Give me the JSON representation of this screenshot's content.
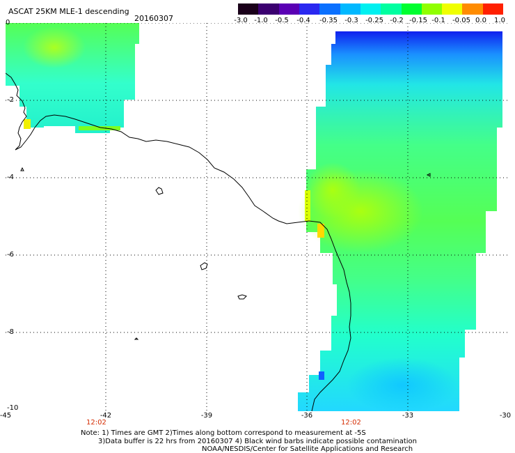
{
  "header": {
    "title": "ASCAT 25KM MLE-1 descending",
    "date": "20160307"
  },
  "colorbar": {
    "tick_labels": [
      "-3.0",
      "-1.0",
      "-0.5",
      "-0.4",
      "-0.35",
      "-0.3",
      "-0.25",
      "-0.2",
      "-0.15",
      "-0.1",
      "-0.05",
      "0.0",
      "1.0"
    ],
    "colors": [
      "#1a001a",
      "#3b0070",
      "#5a00b4",
      "#2a28f0",
      "#0a70ff",
      "#00b8ff",
      "#00f0f0",
      "#00ffa0",
      "#00ff30",
      "#90ff00",
      "#f0ff00",
      "#ff8c00",
      "#ff2000"
    ]
  },
  "axes": {
    "y_tick_labels": [
      "0",
      "-2",
      "-4",
      "-6",
      "-8",
      "-10"
    ],
    "x_tick_labels": [
      "-45",
      "-42",
      "-39",
      "-36",
      "-33",
      "-30"
    ],
    "time_labels": [
      "12:02",
      "12:02"
    ],
    "time_label_color": "#d42b00"
  },
  "notes": {
    "line1": "Note: 1) Times are GMT 2)Times along bottom correspond to measurement at -5S",
    "line2": "3)Data buffer is 22 hrs from 20160307 4) Black wind barbs indicate possible contamination",
    "line3": "NOAA/NESDIS/Center for Satellite Applications and Research"
  }
}
